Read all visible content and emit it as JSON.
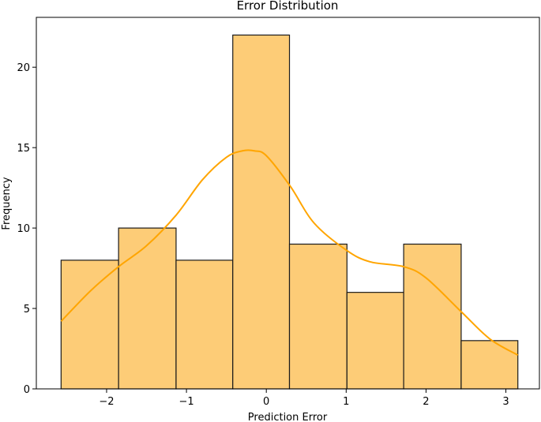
{
  "chart_data": {
    "type": "bar",
    "title": "Error Distribution",
    "xlabel": "Prediction Error",
    "ylabel": "Frequency",
    "xlim": [
      -2.88,
      3.42
    ],
    "ylim": [
      0,
      23.1
    ],
    "xticks": [
      -2,
      -1,
      0,
      1,
      2,
      3
    ],
    "xtick_labels": [
      "−2",
      "−1",
      "0",
      "1",
      "2",
      "3"
    ],
    "yticks": [
      0,
      5,
      10,
      15,
      20
    ],
    "ytick_labels": [
      "0",
      "5",
      "10",
      "15",
      "20"
    ],
    "bins": [
      {
        "left": -2.57,
        "right": -1.85,
        "count": 8
      },
      {
        "left": -1.85,
        "right": -1.13,
        "count": 10
      },
      {
        "left": -1.13,
        "right": -0.42,
        "count": 8
      },
      {
        "left": -0.42,
        "right": 0.29,
        "count": 22
      },
      {
        "left": 0.29,
        "right": 1.01,
        "count": 9
      },
      {
        "left": 1.01,
        "right": 1.72,
        "count": 6
      },
      {
        "left": 1.72,
        "right": 2.44,
        "count": 9
      },
      {
        "left": 2.44,
        "right": 3.15,
        "count": 3
      }
    ],
    "kde": {
      "x": [
        -2.57,
        -2.2,
        -1.85,
        -1.5,
        -1.13,
        -0.8,
        -0.5,
        -0.3,
        -0.15,
        0.0,
        0.3,
        0.6,
        1.01,
        1.3,
        1.72,
        2.0,
        2.44,
        2.8,
        3.15
      ],
      "y": [
        4.2,
        6.1,
        7.6,
        8.9,
        10.8,
        13.0,
        14.4,
        14.8,
        14.8,
        14.5,
        12.6,
        10.3,
        8.6,
        7.9,
        7.6,
        6.9,
        4.8,
        3.1,
        2.1
      ]
    },
    "bar_color": "#fdcc77",
    "bar_edge_color": "#1a1a1a",
    "kde_color": "#ffa500",
    "grid": false,
    "legend": "none"
  }
}
